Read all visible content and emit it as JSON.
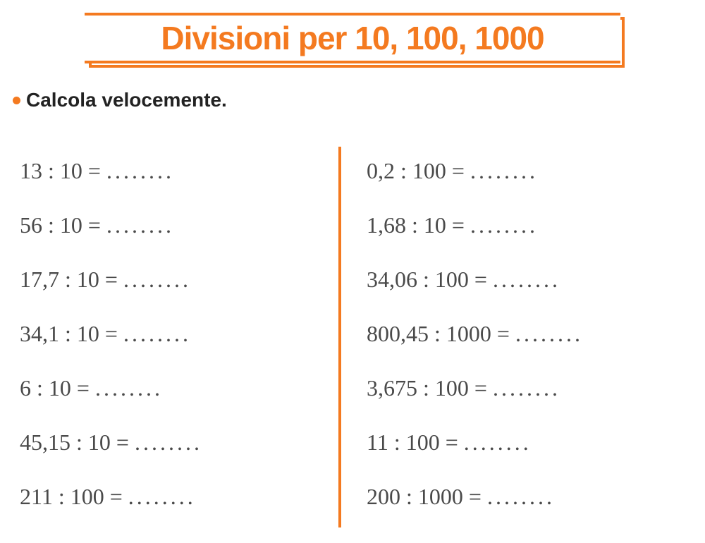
{
  "colors": {
    "accent": "#f47a20",
    "divider": "#f47a20",
    "title_text": "#f47a20",
    "title_border": "#f47a20",
    "body_text": "#4a4a4a",
    "instruction_text": "#222222",
    "background": "#ffffff"
  },
  "typography": {
    "title_fontsize": 46,
    "instruction_fontsize": 28,
    "problem_fontsize": 32
  },
  "title": "Divisioni per 10, 100, 1000",
  "instruction": "Calcola velocemente.",
  "placeholder_dots": "........",
  "left_column": [
    "13 : 10 = ",
    "56 : 10 = ",
    "17,7 : 10 = ",
    "34,1 : 10 = ",
    "6 : 10 = ",
    "45,15 : 10 = ",
    "211 : 100 = "
  ],
  "right_column": [
    "0,2 : 100 = ",
    "1,68 : 10 = ",
    "34,06 : 100 = ",
    "800,45 : 1000 = ",
    "3,675 : 100 = ",
    "11 : 100 = ",
    "200 : 1000 = "
  ]
}
